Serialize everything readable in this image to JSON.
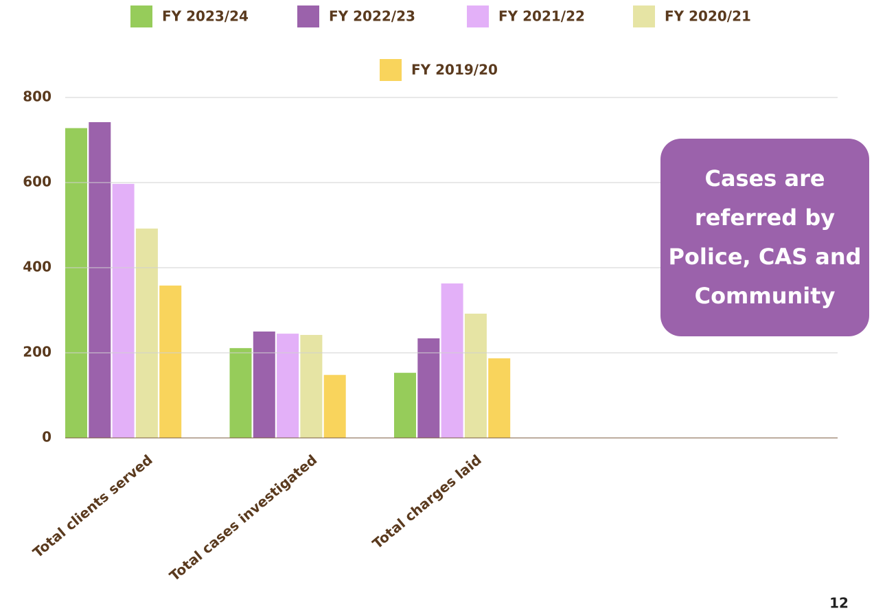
{
  "chart_data": {
    "type": "bar",
    "categories": [
      "Total clients served",
      "Total cases investigated",
      "Total charges laid"
    ],
    "series": [
      {
        "name": "FY 2023/24",
        "color": "#96cc5a",
        "values": [
          728,
          211,
          153
        ]
      },
      {
        "name": "FY 2022/23",
        "color": "#9b62ab",
        "values": [
          742,
          250,
          234
        ]
      },
      {
        "name": "FY 2021/22",
        "color": "#e3b0f8",
        "values": [
          597,
          245,
          363
        ]
      },
      {
        "name": "FY 2020/21",
        "color": "#e6e4a4",
        "values": [
          492,
          242,
          292
        ]
      },
      {
        "name": "FY 2019/20",
        "color": "#f9d45c",
        "values": [
          358,
          148,
          187
        ]
      }
    ],
    "ylim": [
      0,
      800
    ],
    "yticks": [
      0,
      200,
      400,
      600,
      800
    ],
    "grid": true,
    "legend": "top",
    "annotation": "Cases are referred by Police, CAS and Community"
  },
  "page_number": "12"
}
